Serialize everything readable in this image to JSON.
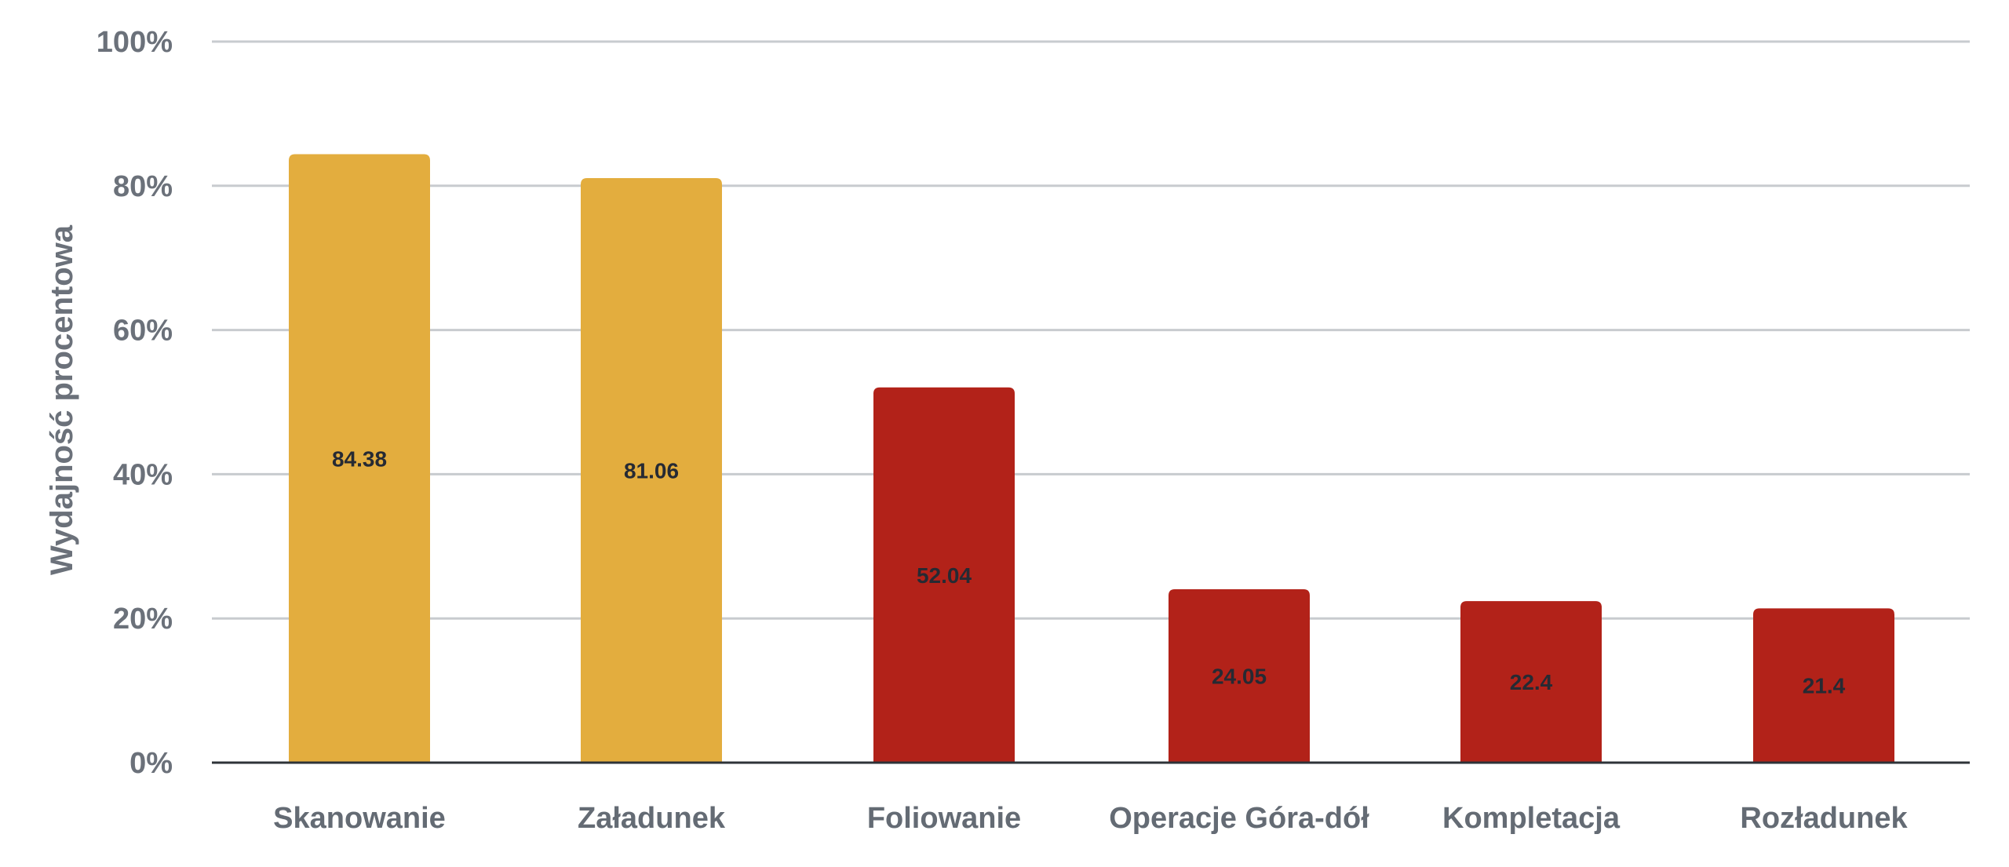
{
  "chart_data": {
    "type": "bar",
    "categories": [
      "Skanowanie",
      "Załadunek",
      "Foliowanie",
      "Operacje Góra-dół",
      "Kompletacja",
      "Rozładunek"
    ],
    "values": [
      84.38,
      81.06,
      52.04,
      24.05,
      22.4,
      21.4
    ],
    "data_labels": [
      "84.38",
      "81.06",
      "52.04",
      "24.05",
      "22.4",
      "21.4"
    ],
    "bar_colors": [
      "#e3ad3e",
      "#e3ad3e",
      "#b22219",
      "#b22219",
      "#b22219",
      "#b22219"
    ],
    "title": "",
    "xlabel": "",
    "ylabel": "Wydajność procentowa",
    "ylim": [
      0,
      100
    ],
    "yticks": [
      0,
      20,
      40,
      60,
      80,
      100
    ],
    "ytick_labels": [
      "0%",
      "20%",
      "40%",
      "60%",
      "80%",
      "100%"
    ],
    "grid": true,
    "legend": false
  }
}
